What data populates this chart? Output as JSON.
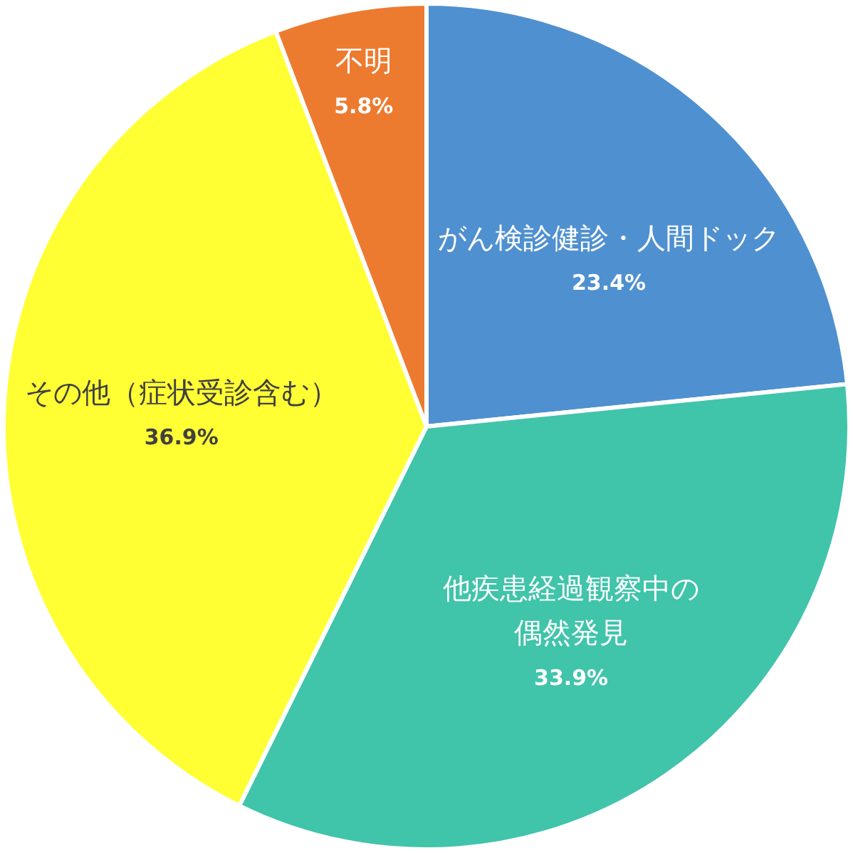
{
  "chart_data": {
    "type": "pie",
    "categories": [
      "がん検診健診・人間ドック",
      "他疾患経過観察中の偶然発見",
      "その他（症状受診含む）",
      "不明"
    ],
    "values": [
      23.4,
      33.9,
      36.9,
      5.8
    ],
    "colors": [
      "#4f90d0",
      "#40c4aa",
      "#ffff33",
      "#ec7b30"
    ],
    "value_labels": [
      "23.4%",
      "33.9%",
      "36.9%",
      "5.8%"
    ]
  }
}
